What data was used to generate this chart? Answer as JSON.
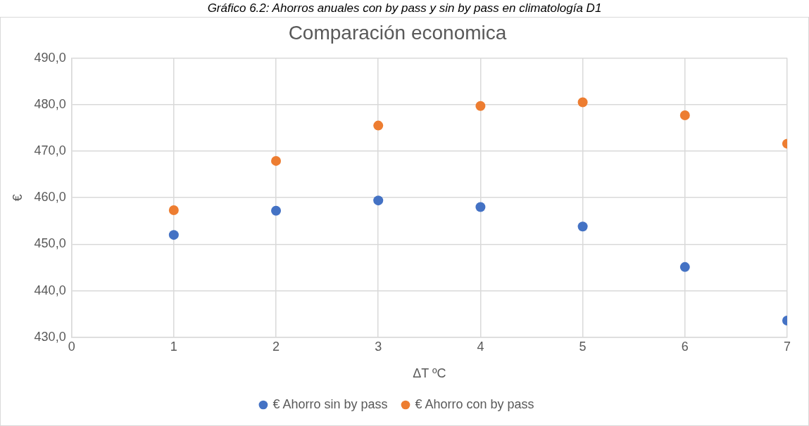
{
  "chart_data": {
    "type": "scatter",
    "title": "Comparación economica",
    "xlabel": "ΔT ºC",
    "ylabel": "€",
    "annotations": [
      "Gráfico 6.2: Ahorros anuales con by pass y sin by pass en climatología D1"
    ],
    "x": [
      1,
      2,
      3,
      4,
      5,
      6,
      7
    ],
    "series": [
      {
        "name": "€ Ahorro sin by pass",
        "color": "#4472c4",
        "values": [
          452.0,
          457.2,
          459.4,
          458.0,
          453.8,
          445.1,
          433.6
        ]
      },
      {
        "name": "€ Ahorro con by pass",
        "color": "#ed7d31",
        "values": [
          457.3,
          467.9,
          475.5,
          479.7,
          480.5,
          477.7,
          471.6
        ]
      }
    ],
    "xlim": [
      0,
      7
    ],
    "xticks": [
      0,
      1,
      2,
      3,
      4,
      5,
      6,
      7
    ],
    "ylim": [
      430,
      490
    ],
    "yticks": [
      {
        "value": 430,
        "label": "430,0"
      },
      {
        "value": 440,
        "label": "440,0"
      },
      {
        "value": 450,
        "label": "450,0"
      },
      {
        "value": 460,
        "label": "460,0"
      },
      {
        "value": 470,
        "label": "470,0"
      },
      {
        "value": 480,
        "label": "480,0"
      },
      {
        "value": 490,
        "label": "490,0"
      }
    ],
    "grid": true,
    "legend": "bottom",
    "marker": "circle"
  }
}
